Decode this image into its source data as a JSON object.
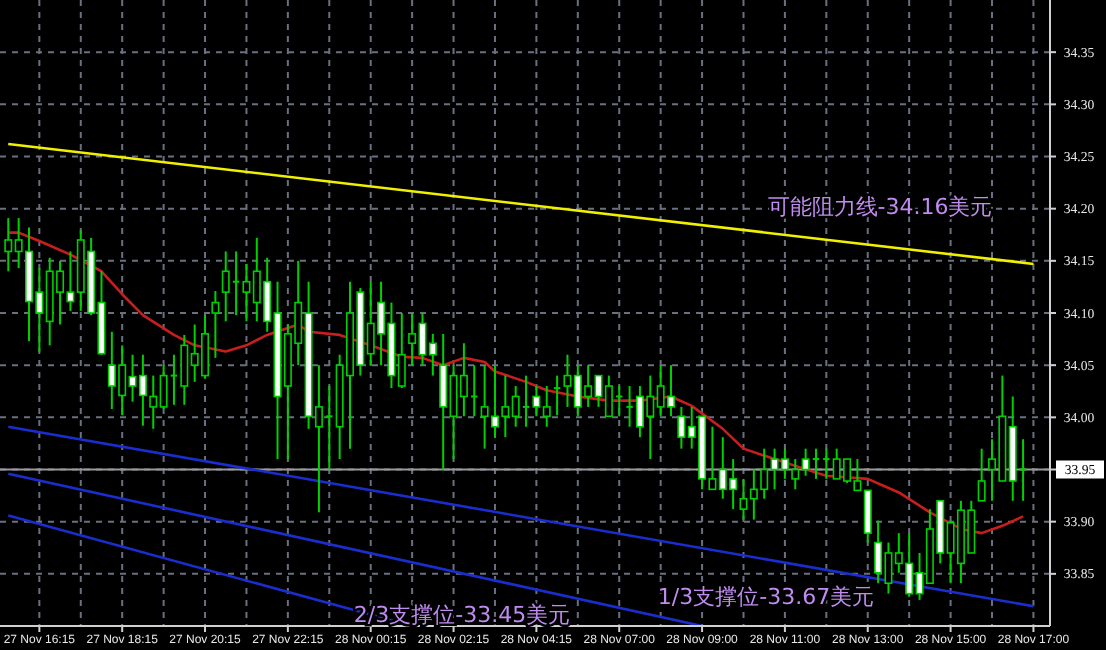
{
  "chart_data": {
    "type": "candlestick",
    "color": "#00d000",
    "grid": true,
    "ylim": [
      33.8,
      34.4
    ],
    "categories": [
      null,
      null,
      null,
      "27 Nov 16:15",
      null,
      null,
      null,
      null,
      null,
      null,
      null,
      "27 Nov 18:15",
      null,
      null,
      null,
      null,
      null,
      null,
      null,
      "27 Nov 20:15",
      null,
      null,
      null,
      null,
      null,
      null,
      null,
      "27 Nov 22:15",
      null,
      null,
      null,
      null,
      null,
      null,
      null,
      "28 Nov 00:15",
      null,
      null,
      null,
      null,
      null,
      null,
      null,
      "28 Nov 02:15",
      null,
      null,
      null,
      null,
      null,
      null,
      null,
      "28 Nov 04:15",
      null,
      null,
      null,
      null,
      null,
      null,
      null,
      "28 Nov 07:00",
      null,
      null,
      null,
      null,
      null,
      null,
      null,
      "28 Nov 09:00",
      null,
      null,
      null,
      null,
      null,
      null,
      null,
      "28 Nov 11:00",
      null,
      null,
      null,
      null,
      null,
      null,
      null,
      "28 Nov 13:00",
      null,
      null,
      null,
      null,
      null,
      null,
      null,
      "28 Nov 15:00",
      null,
      null,
      null,
      null,
      null,
      null,
      null,
      "28 Nov 17:00"
    ],
    "yticks": [
      {
        "value": 33.85,
        "label": "33.85"
      },
      {
        "value": 33.9,
        "label": "33.90"
      },
      {
        "value": 33.95,
        "label": null
      },
      {
        "value": 34.0,
        "label": "34.00"
      },
      {
        "value": 34.05,
        "label": "34.05"
      },
      {
        "value": 34.1,
        "label": "34.10"
      },
      {
        "value": 34.15,
        "label": "34.15"
      },
      {
        "value": 34.2,
        "label": "34.20"
      },
      {
        "value": 34.25,
        "label": "34.25"
      },
      {
        "value": 34.3,
        "label": "34.30"
      },
      {
        "value": 34.35,
        "label": "34.35"
      }
    ],
    "ohlc": [
      [
        34.159,
        34.191,
        34.14,
        34.17
      ],
      [
        34.159,
        34.191,
        34.143,
        34.17
      ],
      [
        34.159,
        34.182,
        34.073,
        34.111
      ],
      [
        34.12,
        34.143,
        34.063,
        34.1
      ],
      [
        34.092,
        34.153,
        34.069,
        34.14
      ],
      [
        34.12,
        34.15,
        34.089,
        34.14
      ],
      [
        34.12,
        34.159,
        34.102,
        34.111
      ],
      [
        34.12,
        34.179,
        34.102,
        34.17
      ],
      [
        34.159,
        34.172,
        34.098,
        34.1
      ],
      [
        34.11,
        34.14,
        34.06,
        34.061
      ],
      [
        34.05,
        34.082,
        34.008,
        34.03
      ],
      [
        34.021,
        34.069,
        34.002,
        34.05
      ],
      [
        34.039,
        34.06,
        34.015,
        34.03
      ],
      [
        34.04,
        34.06,
        33.992,
        34.021
      ],
      [
        34.01,
        34.04,
        33.989,
        34.02
      ],
      [
        34.01,
        34.05,
        34.008,
        34.04
      ],
      [
        34.04,
        34.06,
        34.012,
        34.04
      ],
      [
        34.03,
        34.079,
        34.012,
        34.069
      ],
      [
        34.05,
        34.089,
        34.034,
        34.061
      ],
      [
        34.04,
        34.098,
        34.037,
        34.08
      ],
      [
        34.1,
        34.121,
        34.057,
        34.11
      ],
      [
        34.12,
        34.159,
        34.092,
        34.14
      ],
      [
        34.13,
        34.159,
        34.098,
        34.13
      ],
      [
        34.12,
        34.147,
        34.092,
        34.13
      ],
      [
        34.11,
        34.172,
        34.092,
        34.14
      ],
      [
        34.13,
        34.153,
        34.082,
        34.092
      ],
      [
        34.1,
        34.13,
        33.96,
        34.02
      ],
      [
        34.03,
        34.089,
        33.96,
        34.08
      ],
      [
        34.071,
        34.15,
        34.05,
        34.11
      ],
      [
        34.1,
        34.13,
        33.989,
        34.001
      ],
      [
        33.991,
        34.05,
        33.909,
        34.01
      ],
      [
        34.001,
        34.03,
        33.95,
        34.001
      ],
      [
        33.991,
        34.06,
        33.96,
        34.05
      ],
      [
        34.04,
        34.13,
        33.97,
        34.1
      ],
      [
        34.12,
        34.124,
        34.04,
        34.05
      ],
      [
        34.061,
        34.13,
        34.05,
        34.09
      ],
      [
        34.11,
        34.13,
        34.05,
        34.08
      ],
      [
        34.09,
        34.11,
        34.028,
        34.04
      ],
      [
        34.03,
        34.1,
        34.028,
        34.06
      ],
      [
        34.071,
        34.1,
        34.05,
        34.08
      ],
      [
        34.09,
        34.1,
        34.05,
        34.06
      ],
      [
        34.071,
        34.08,
        34.04,
        34.06
      ],
      [
        34.05,
        34.08,
        33.95,
        34.01
      ],
      [
        34.001,
        34.05,
        33.96,
        34.04
      ],
      [
        34.02,
        34.071,
        34.001,
        34.04
      ],
      [
        34.02,
        34.05,
        34.001,
        34.02
      ],
      [
        34.001,
        34.05,
        33.97,
        34.01
      ],
      [
        34.001,
        34.05,
        33.981,
        33.991
      ],
      [
        34.001,
        34.04,
        33.981,
        34.01
      ],
      [
        34.001,
        34.03,
        33.991,
        34.02
      ],
      [
        34.01,
        34.04,
        33.991,
        34.01
      ],
      [
        34.02,
        34.03,
        34.001,
        34.01
      ],
      [
        34.001,
        34.03,
        33.991,
        34.01
      ],
      [
        34.028,
        34.04,
        34.002,
        34.028
      ],
      [
        34.03,
        34.06,
        34.01,
        34.04
      ],
      [
        34.04,
        34.05,
        34.001,
        34.01
      ],
      [
        34.02,
        34.05,
        34.01,
        34.03
      ],
      [
        34.04,
        34.04,
        34.01,
        34.02
      ],
      [
        34.001,
        34.04,
        34.001,
        34.03
      ],
      [
        34.02,
        34.03,
        34.001,
        34.02
      ],
      [
        34.01,
        34.03,
        33.991,
        34.01
      ],
      [
        34.02,
        34.03,
        33.981,
        33.991
      ],
      [
        34.001,
        34.04,
        33.96,
        34.02
      ],
      [
        34.01,
        34.05,
        34.001,
        34.03
      ],
      [
        34.02,
        34.05,
        34.001,
        34.01
      ],
      [
        34.001,
        34.01,
        33.97,
        33.981
      ],
      [
        33.991,
        34.01,
        33.97,
        33.981
      ],
      [
        34.001,
        34.001,
        33.931,
        33.941
      ],
      [
        33.931,
        33.991,
        33.931,
        33.941
      ],
      [
        33.95,
        33.981,
        33.922,
        33.931
      ],
      [
        33.941,
        33.96,
        33.912,
        33.931
      ],
      [
        33.912,
        33.941,
        33.902,
        33.922
      ],
      [
        33.922,
        33.95,
        33.902,
        33.931
      ],
      [
        33.931,
        33.97,
        33.922,
        33.95
      ],
      [
        33.96,
        33.97,
        33.931,
        33.95
      ],
      [
        33.96,
        33.97,
        33.941,
        33.95
      ],
      [
        33.941,
        33.96,
        33.931,
        33.95
      ],
      [
        33.96,
        33.97,
        33.944,
        33.95
      ],
      [
        33.96,
        33.97,
        33.941,
        33.96
      ],
      [
        33.96,
        33.97,
        33.941,
        33.96
      ],
      [
        33.941,
        33.97,
        33.941,
        33.96
      ],
      [
        33.939,
        33.96,
        33.937,
        33.96
      ],
      [
        33.93,
        33.96,
        33.93,
        33.939
      ],
      [
        33.93,
        33.93,
        33.88,
        33.889
      ],
      [
        33.88,
        33.901,
        33.841,
        33.851
      ],
      [
        33.841,
        33.88,
        33.831,
        33.87
      ],
      [
        33.86,
        33.889,
        33.851,
        33.87
      ],
      [
        33.86,
        33.889,
        33.828,
        33.831
      ],
      [
        33.851,
        33.87,
        33.825,
        33.831
      ],
      [
        33.841,
        33.912,
        33.841,
        33.893
      ],
      [
        33.92,
        33.92,
        33.86,
        33.87
      ],
      [
        33.87,
        33.901,
        33.841,
        33.899
      ],
      [
        33.86,
        33.92,
        33.841,
        33.911
      ],
      [
        33.87,
        33.92,
        33.87,
        33.911
      ],
      [
        33.92,
        33.97,
        33.92,
        33.939
      ],
      [
        33.95,
        33.979,
        33.92,
        33.96
      ],
      [
        33.939,
        34.04,
        33.939,
        34.001
      ],
      [
        33.991,
        34.02,
        33.92,
        33.939
      ],
      [
        33.95,
        33.979,
        33.92,
        33.95
      ],
      null
    ],
    "series": [
      {
        "type": "line",
        "color": "#c81e1e",
        "values": [
          34.177,
          34.177,
          null,
          34.169,
          null,
          null,
          34.156,
          null,
          null,
          34.14,
          null,
          34.118,
          null,
          34.098,
          null,
          null,
          34.079,
          null,
          34.069,
          null,
          null,
          34.063,
          null,
          34.069,
          null,
          34.079,
          null,
          null,
          34.089,
          34.082,
          null,
          null,
          34.079,
          null,
          null,
          34.069,
          null,
          null,
          34.058,
          null,
          34.057,
          null,
          34.05,
          null,
          34.057,
          null,
          34.053,
          34.044,
          null,
          null,
          34.034,
          null,
          34.026,
          null,
          null,
          34.02,
          null,
          null,
          34.016,
          null,
          null,
          34.016,
          null,
          null,
          34.02,
          null,
          34.011,
          null,
          null,
          33.989,
          null,
          33.97,
          null,
          null,
          33.96,
          null,
          null,
          null,
          33.947,
          33.944,
          null,
          null,
          null,
          33.941,
          null,
          null,
          33.928,
          null,
          null,
          33.909,
          null,
          null,
          33.893,
          null,
          33.889,
          null,
          33.896,
          null,
          33.905,
          null
        ]
      },
      {
        "type": "line",
        "color": "#f0f000",
        "values": [
          34.262,
          null,
          null,
          null,
          null,
          null,
          null,
          null,
          null,
          null,
          null,
          null,
          null,
          null,
          null,
          null,
          null,
          null,
          null,
          null,
          null,
          null,
          null,
          null,
          null,
          null,
          null,
          null,
          null,
          null,
          null,
          null,
          null,
          null,
          null,
          null,
          null,
          null,
          null,
          null,
          null,
          null,
          null,
          null,
          null,
          null,
          null,
          null,
          null,
          null,
          null,
          null,
          null,
          null,
          null,
          null,
          null,
          null,
          null,
          null,
          null,
          null,
          null,
          null,
          null,
          null,
          null,
          null,
          null,
          null,
          null,
          null,
          null,
          null,
          null,
          null,
          null,
          null,
          null,
          null,
          null,
          null,
          null,
          null,
          null,
          null,
          null,
          null,
          null,
          null,
          null,
          null,
          null,
          null,
          null,
          null,
          null,
          null,
          null,
          34.147
        ]
      },
      {
        "type": "line",
        "color": "#1a2ed0",
        "values": [
          33.991,
          null,
          null,
          null,
          null,
          null,
          null,
          null,
          null,
          null,
          null,
          null,
          null,
          null,
          null,
          null,
          null,
          null,
          null,
          null,
          null,
          null,
          null,
          null,
          null,
          null,
          null,
          null,
          null,
          null,
          null,
          null,
          null,
          null,
          null,
          null,
          null,
          null,
          null,
          null,
          null,
          null,
          null,
          null,
          null,
          null,
          null,
          null,
          null,
          null,
          null,
          null,
          null,
          null,
          null,
          null,
          null,
          null,
          null,
          null,
          null,
          null,
          null,
          null,
          null,
          null,
          null,
          null,
          null,
          null,
          null,
          null,
          null,
          null,
          null,
          null,
          null,
          null,
          null,
          null,
          null,
          null,
          null,
          null,
          null,
          null,
          null,
          null,
          null,
          null,
          null,
          null,
          null,
          null,
          null,
          null,
          null,
          null,
          null,
          33.819
        ]
      },
      {
        "type": "line",
        "color": "#1a2ed0",
        "values": [
          33.946,
          null,
          null,
          null,
          null,
          null,
          null,
          null,
          null,
          null,
          null,
          null,
          null,
          null,
          null,
          null,
          null,
          null,
          null,
          null,
          null,
          null,
          null,
          null,
          null,
          null,
          null,
          null,
          null,
          null,
          null,
          null,
          null,
          null,
          null,
          null,
          null,
          null,
          null,
          null,
          null,
          null,
          null,
          null,
          null,
          null,
          null,
          null,
          null,
          null,
          null,
          null,
          null,
          null,
          null,
          null,
          null,
          null,
          null,
          null,
          null,
          null,
          null,
          null,
          null,
          null,
          null,
          33.8,
          null,
          null,
          null,
          null,
          null,
          null,
          null,
          null,
          null,
          null,
          null,
          null,
          null,
          null,
          null,
          null,
          null,
          null,
          null,
          null,
          null,
          null,
          null,
          null,
          null,
          null,
          null,
          null,
          null,
          null,
          null,
          null
        ]
      },
      {
        "type": "line",
        "color": "#1a2ed0",
        "values": [
          33.906,
          null,
          null,
          null,
          null,
          null,
          null,
          null,
          null,
          null,
          null,
          null,
          null,
          null,
          null,
          null,
          null,
          null,
          null,
          null,
          null,
          null,
          null,
          null,
          null,
          null,
          null,
          null,
          null,
          null,
          null,
          null,
          null,
          null,
          null,
          null,
          null,
          null,
          null,
          33.8,
          null,
          null,
          null,
          null,
          null,
          null,
          null,
          null,
          null,
          null,
          null,
          null,
          null,
          null,
          null,
          null,
          null,
          null,
          null,
          null,
          null,
          null,
          null,
          null,
          null,
          null,
          null,
          null,
          null,
          null,
          null,
          null,
          null,
          null,
          null,
          null,
          null,
          null,
          null,
          null,
          null,
          null,
          null,
          null,
          null,
          null,
          null,
          null,
          null,
          null,
          null,
          null,
          null,
          null,
          null,
          null,
          null,
          null,
          null,
          null
        ]
      }
    ],
    "ref_lines": [
      {
        "axis": "y",
        "value": 33.95,
        "label": "33.95",
        "color": "#9a9a9a"
      }
    ],
    "annotations": [
      "可能阻力线-34.16美元",
      "1/3支撑位-33.67美元",
      "2/3支撑位-33.45美元"
    ]
  }
}
